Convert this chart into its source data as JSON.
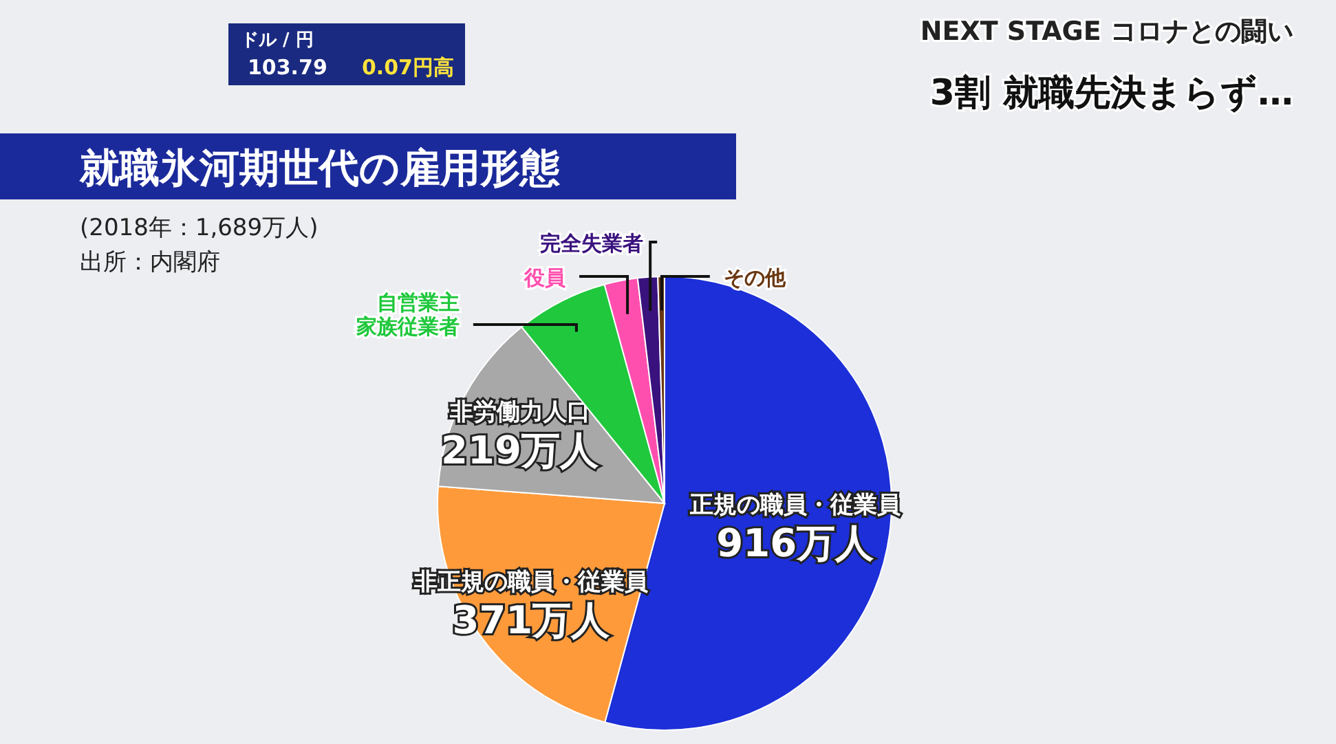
{
  "chart_data": {
    "type": "pie",
    "title": "就職氷河期世代の雇用形態",
    "subtitle": "(2018年：1,689万人)",
    "categories": [
      "正規の職員・従業員",
      "非正規の職員・従業員",
      "非労働力人口",
      "自営業主家族従業者",
      "役員",
      "完全失業者",
      "その他"
    ],
    "values": [
      916,
      371,
      219,
      111,
      40,
      24,
      8
    ],
    "value_labels": [
      "916万人",
      "371万人",
      "219万人",
      null,
      null,
      null,
      null
    ],
    "colors": [
      "#1c2fd8",
      "#ff9a3a",
      "#a8a8a8",
      "#1fc83c",
      "#ff4fae",
      "#3a127e",
      "#6a3812"
    ],
    "legend": false,
    "annotations": [
      "出所：内閣府",
      "NEXT STAGE コロナとの闘い",
      "3割 就職先決まらず…",
      "ドル / 円",
      "103.79",
      "0.07円高"
    ]
  }
}
